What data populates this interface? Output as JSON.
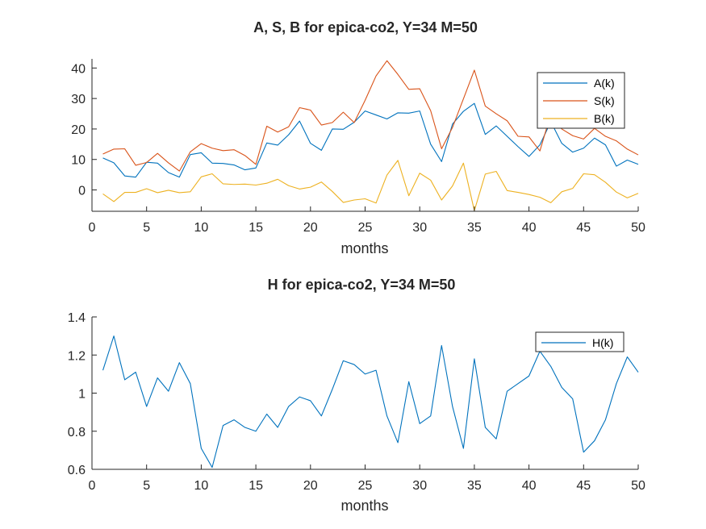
{
  "chart_data": [
    {
      "type": "line",
      "title": "A, S, B for epica-co2, Y=34 M=50",
      "xlabel": "months",
      "ylabel": "",
      "xlim": [
        0,
        50
      ],
      "ylim": [
        -7,
        43
      ],
      "xticks": [
        "0",
        "5",
        "10",
        "15",
        "20",
        "25",
        "30",
        "35",
        "40",
        "45",
        "50"
      ],
      "yticks": [
        "0",
        "10",
        "20",
        "30",
        "40"
      ],
      "legend_position": "top-right",
      "x": [
        1,
        2,
        3,
        4,
        5,
        6,
        7,
        8,
        9,
        10,
        11,
        12,
        13,
        14,
        15,
        16,
        17,
        18,
        19,
        20,
        21,
        22,
        23,
        24,
        25,
        26,
        27,
        28,
        29,
        30,
        31,
        32,
        33,
        34,
        35,
        36,
        37,
        38,
        39,
        40,
        41,
        42,
        43,
        44,
        45,
        46,
        47,
        48,
        49,
        50
      ],
      "series": [
        {
          "name": "A(k)",
          "color": "#0072BD",
          "values": [
            10.5,
            8.9,
            4.6,
            4.2,
            9.1,
            8.8,
            5.7,
            4.2,
            11.6,
            12.2,
            8.8,
            8.7,
            8.2,
            6.6,
            7.2,
            15.4,
            14.7,
            18.1,
            22.6,
            15.3,
            13,
            20,
            19.9,
            22.2,
            25.9,
            24.6,
            23.3,
            25.3,
            25.2,
            25.9,
            15,
            9.3,
            21.6,
            25.8,
            28.4,
            18.2,
            21,
            17.6,
            14.2,
            11,
            14.8,
            22.4,
            15.3,
            12.4,
            13.7,
            17,
            14.8,
            7.8,
            9.8,
            8.4
          ]
        },
        {
          "name": "S(k)",
          "color": "#D95319",
          "values": [
            11.8,
            13.4,
            13.5,
            8.1,
            9,
            12,
            8.9,
            6.2,
            12.5,
            15.2,
            13.7,
            12.9,
            13.2,
            11.3,
            8.4,
            20.9,
            19,
            20.7,
            27,
            26.2,
            21.3,
            22.1,
            25.5,
            22.1,
            29.4,
            37.4,
            42.4,
            37.9,
            33,
            33.2,
            26,
            13.5,
            20.5,
            29.9,
            39.3,
            27.5,
            25,
            22.7,
            17.6,
            17.4,
            12.8,
            25,
            20,
            17.8,
            16.7,
            20.2,
            17.6,
            16.1,
            13.4,
            11.5
          ]
        },
        {
          "name": "B(k)",
          "color": "#EDB120",
          "values": [
            -1.3,
            -3.8,
            -0.8,
            -0.8,
            0.4,
            -0.9,
            -0.1,
            -0.9,
            -0.6,
            4.3,
            5.3,
            2,
            1.8,
            1.9,
            1.6,
            2.2,
            3.5,
            1.4,
            0.3,
            0.9,
            2.6,
            -0.5,
            -4.1,
            -3.3,
            -2.9,
            -4.3,
            4.9,
            9.7,
            -1.9,
            5.5,
            3.2,
            -3.3,
            1.3,
            8.8,
            -6.8,
            5.2,
            6.1,
            -0.2,
            -0.8,
            -1.5,
            -2.4,
            -4.2,
            -0.6,
            0.5,
            5.3,
            5,
            2.5,
            -0.7,
            -2.6,
            -1.1
          ]
        }
      ]
    },
    {
      "type": "line",
      "title": "H for epica-co2, Y=34 M=50",
      "xlabel": "months",
      "ylabel": "",
      "xlim": [
        0,
        50
      ],
      "ylim": [
        0.6,
        1.4
      ],
      "xticks": [
        "0",
        "5",
        "10",
        "15",
        "20",
        "25",
        "30",
        "35",
        "40",
        "45",
        "50"
      ],
      "yticks": [
        "0.6",
        "0.8",
        "1",
        "1.2",
        "1.4"
      ],
      "legend_position": "top-right",
      "x": [
        1,
        2,
        3,
        4,
        5,
        6,
        7,
        8,
        9,
        10,
        11,
        12,
        13,
        14,
        15,
        16,
        17,
        18,
        19,
        20,
        21,
        22,
        23,
        24,
        25,
        26,
        27,
        28,
        29,
        30,
        31,
        32,
        33,
        34,
        35,
        36,
        37,
        38,
        39,
        40,
        41,
        42,
        43,
        44,
        45,
        46,
        47,
        48,
        49,
        50
      ],
      "series": [
        {
          "name": "H(k)",
          "color": "#0072BD",
          "values": [
            1.12,
            1.3,
            1.07,
            1.11,
            0.93,
            1.08,
            1.01,
            1.16,
            1.05,
            0.71,
            0.61,
            0.83,
            0.86,
            0.82,
            0.8,
            0.89,
            0.82,
            0.93,
            0.98,
            0.96,
            0.88,
            1.02,
            1.17,
            1.15,
            1.1,
            1.12,
            0.88,
            0.74,
            1.06,
            0.84,
            0.88,
            1.25,
            0.93,
            0.71,
            1.18,
            0.82,
            0.76,
            1.01,
            1.05,
            1.09,
            1.22,
            1.14,
            1.03,
            0.97,
            0.69,
            0.75,
            0.86,
            1.05,
            1.19,
            1.11
          ]
        }
      ]
    }
  ]
}
